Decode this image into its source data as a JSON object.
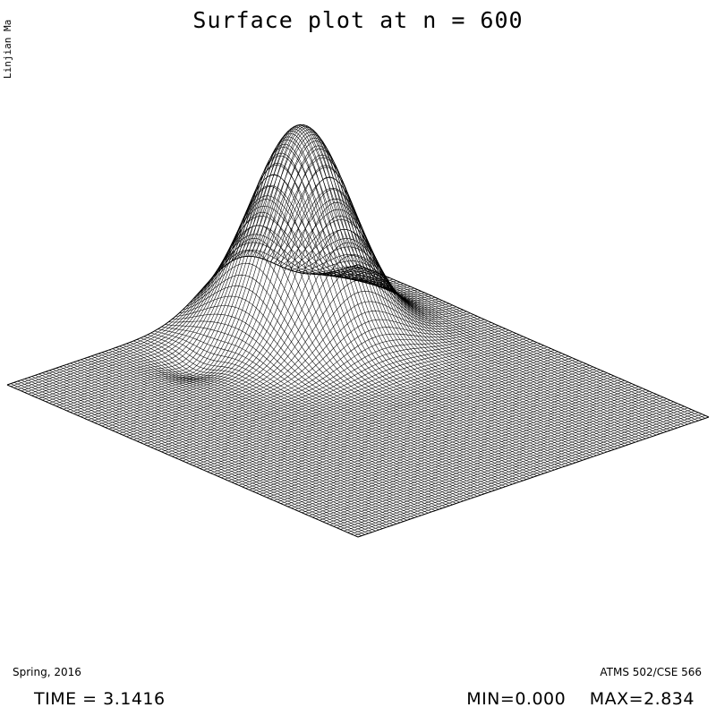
{
  "chart_data": {
    "type": "surface",
    "title": "Surface plot at n = 600",
    "xlabel": "",
    "ylabel": "",
    "zlabel": "",
    "grid": true,
    "zlim": [
      0.0,
      2.834
    ],
    "peak": {
      "value": 2.834,
      "location": "back-left quadrant"
    },
    "stats": {
      "time_label": "TIME = 3.1416",
      "min_label": "MIN=0.000",
      "max_label": "MAX=2.834"
    }
  },
  "author": "Linjian Ma",
  "semester": "Spring, 2016",
  "course": "ATMS 502/CSE 566"
}
